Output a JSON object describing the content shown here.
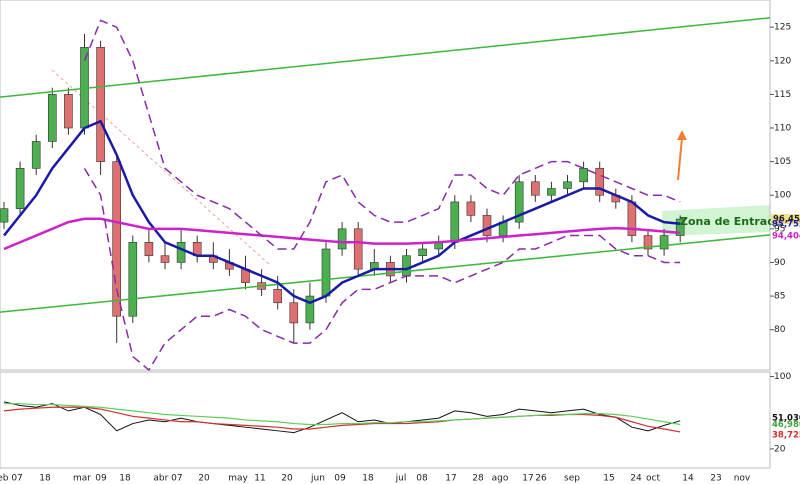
{
  "chart_data": [
    {
      "type": "candlestick",
      "annotation": "Zona de Entrada",
      "ylim": [
        74,
        128
      ],
      "yticks": [
        80,
        85,
        90,
        95,
        100,
        105,
        110,
        115,
        120,
        125
      ],
      "up_color": "#4cb050",
      "down_color": "#e07070",
      "open": [
        96,
        98,
        104,
        108,
        115,
        110,
        122,
        105,
        82,
        93,
        91,
        90,
        93,
        91,
        90,
        89,
        87,
        86,
        84,
        81,
        85,
        92,
        95,
        89,
        90,
        88,
        91,
        92,
        93,
        99,
        97,
        94,
        96,
        102,
        100,
        101,
        102,
        104,
        100,
        99,
        94,
        92,
        94
      ],
      "high": [
        99,
        105,
        109,
        116,
        116,
        124,
        123,
        106,
        94,
        95,
        93,
        95,
        94,
        93,
        92,
        91,
        89,
        88,
        86,
        87,
        93,
        96,
        96,
        92,
        91,
        92,
        93,
        94,
        100,
        100,
        98,
        97,
        103,
        103,
        102,
        103,
        105,
        105,
        101,
        100,
        95,
        95,
        97
      ],
      "low": [
        95,
        97,
        103,
        107,
        109,
        109,
        103,
        78,
        81,
        90,
        89,
        89,
        90,
        89,
        88,
        86,
        85,
        83,
        78,
        80,
        84,
        91,
        88,
        88,
        87,
        87,
        90,
        91,
        92,
        96,
        93,
        93,
        95,
        99,
        99,
        100,
        101,
        99,
        98,
        93,
        91,
        91,
        93
      ],
      "close": [
        98,
        104,
        108,
        115,
        110,
        122,
        105,
        82,
        93,
        91,
        90,
        93,
        91,
        90,
        89,
        87,
        86,
        84,
        81,
        85,
        92,
        95,
        89,
        90,
        88,
        91,
        92,
        93,
        99,
        97,
        94,
        96,
        102,
        100,
        101,
        102,
        104,
        100,
        99,
        94,
        92,
        94,
        96.45
      ],
      "series": [
        {
          "color": "#1a1aa8",
          "width": 2.5,
          "values": [
            94,
            97,
            100,
            104,
            107,
            110,
            111,
            106,
            100,
            96,
            93,
            92,
            91,
            91,
            90,
            89,
            88,
            87,
            85,
            84,
            85,
            87,
            88,
            89,
            89,
            89,
            90,
            91,
            93,
            94,
            95,
            96,
            97,
            98,
            99,
            100,
            101,
            101,
            100,
            99,
            97,
            96,
            95.752
          ]
        },
        {
          "color": "#cc22cc",
          "width": 2.5,
          "values": [
            92,
            93,
            94,
            95,
            96,
            96.5,
            96.5,
            96,
            95.5,
            95,
            95,
            95,
            94.8,
            94.6,
            94.4,
            94.2,
            94,
            93.8,
            93.6,
            93.4,
            93.2,
            93,
            93,
            92.8,
            92.8,
            92.8,
            92.9,
            93,
            93.2,
            93.4,
            93.6,
            93.8,
            94,
            94.2,
            94.4,
            94.6,
            94.8,
            95,
            95.1,
            95,
            94.8,
            94.6,
            94.404
          ]
        },
        {
          "color": "#8a2aa8",
          "width": 1.5,
          "dashed": true,
          "values": [
            null,
            null,
            null,
            null,
            null,
            120,
            126,
            125,
            120,
            112,
            104,
            102,
            100,
            99,
            98,
            96,
            94,
            92,
            92,
            96,
            102,
            103,
            99,
            97,
            96,
            96,
            97,
            98,
            103,
            103,
            101,
            100,
            103,
            104,
            105,
            105,
            104,
            103,
            102,
            101,
            100,
            100,
            99
          ]
        },
        {
          "color": "#8a2aa8",
          "width": 1.5,
          "dashed": true,
          "values": [
            null,
            null,
            null,
            null,
            null,
            104,
            100,
            86,
            76,
            74,
            78,
            80,
            82,
            82,
            83,
            82,
            80,
            79,
            78,
            78,
            80,
            84,
            86,
            86,
            87,
            88,
            88,
            88,
            87,
            88,
            89,
            90,
            92,
            92,
            93,
            94,
            94,
            94,
            92,
            91,
            91,
            90,
            90
          ]
        }
      ],
      "trend_lines": [
        {
          "color": "#3cb83c",
          "values": [
            114.6,
            126.4
          ]
        },
        {
          "color": "#3cb83c",
          "values": [
            82.6,
            94.1
          ]
        }
      ],
      "value_tags": [
        {
          "value": 96.45,
          "label": "96,45",
          "color": "#f2e08a"
        },
        {
          "value": 95.752,
          "label": "95,752",
          "color": "#1a1aa8"
        },
        {
          "value": 94.404,
          "label": "94,404",
          "color": "#cc22cc"
        }
      ]
    },
    {
      "type": "line",
      "ylim": [
        0,
        105
      ],
      "yticks": [
        20,
        100
      ],
      "series": [
        {
          "color": "#111111",
          "width": 1,
          "values": [
            72,
            68,
            66,
            70,
            62,
            66,
            58,
            40,
            48,
            52,
            50,
            54,
            50,
            48,
            46,
            44,
            42,
            40,
            38,
            44,
            52,
            60,
            50,
            52,
            48,
            50,
            52,
            54,
            62,
            60,
            56,
            58,
            64,
            62,
            60,
            62,
            64,
            58,
            55,
            44,
            40,
            46,
            51.03
          ]
        },
        {
          "color": "#d03030",
          "width": 1.2,
          "values": [
            62,
            64,
            65,
            66,
            66,
            66,
            64,
            60,
            56,
            54,
            52,
            50,
            50,
            48,
            47,
            46,
            45,
            44,
            42,
            42,
            44,
            46,
            47,
            48,
            48,
            48,
            49,
            50,
            52,
            53,
            54,
            55,
            56,
            57,
            57,
            58,
            58,
            57,
            55,
            50,
            45,
            42,
            38.725
          ]
        },
        {
          "color": "#5ad05a",
          "width": 1.2,
          "values": [
            70,
            70,
            69,
            69,
            68,
            67,
            66,
            64,
            62,
            60,
            58,
            57,
            56,
            55,
            54,
            52,
            51,
            50,
            48,
            47,
            47,
            48,
            48,
            49,
            49,
            50,
            50,
            51,
            52,
            53,
            54,
            55,
            56,
            57,
            58,
            58,
            59,
            59,
            58,
            56,
            53,
            50,
            46.986
          ]
        }
      ],
      "value_tags": [
        {
          "value": 51.03,
          "label": "51,030",
          "color": "#111111"
        },
        {
          "value": 46.986,
          "label": "46,986",
          "color": "#3aa83a"
        },
        {
          "value": 38.725,
          "label": "38,725",
          "color": "#d03030"
        }
      ],
      "xtick_labels": [
        "eb 07",
        "18",
        "mar",
        "09",
        "18",
        "abr 07",
        "20",
        "may",
        "11",
        "20",
        "jun",
        "09",
        "18",
        "jul",
        "08",
        "17",
        "28",
        "ago",
        "17",
        "26",
        "sep",
        "15",
        "24",
        "oct",
        "14",
        "23",
        "nov"
      ]
    }
  ]
}
